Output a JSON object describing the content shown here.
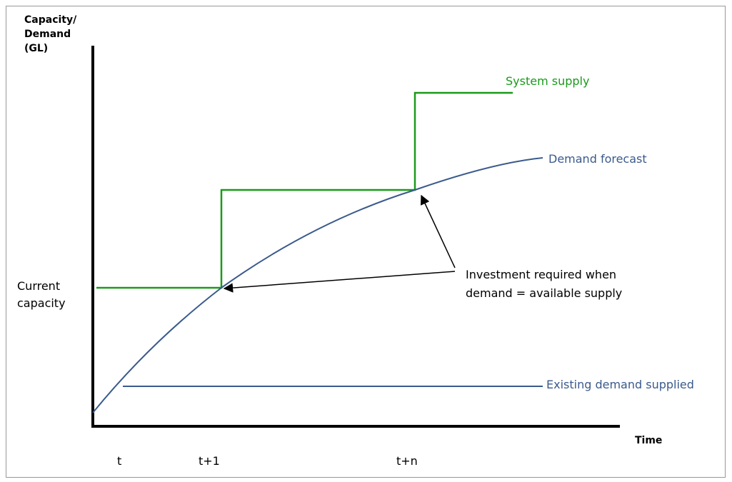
{
  "y_axis": {
    "label": [
      "Capacity/",
      "Demand",
      "(GL)"
    ]
  },
  "x_axis": {
    "label": "Time",
    "ticks": [
      "t",
      "t+1",
      "t+n"
    ]
  },
  "left_label": [
    "Current",
    "capacity"
  ],
  "series_labels": {
    "system_supply": "System supply",
    "demand_forecast": "Demand forecast",
    "existing_demand": "Existing demand supplied"
  },
  "annotation": [
    "Investment required when",
    "demand = available supply"
  ]
}
